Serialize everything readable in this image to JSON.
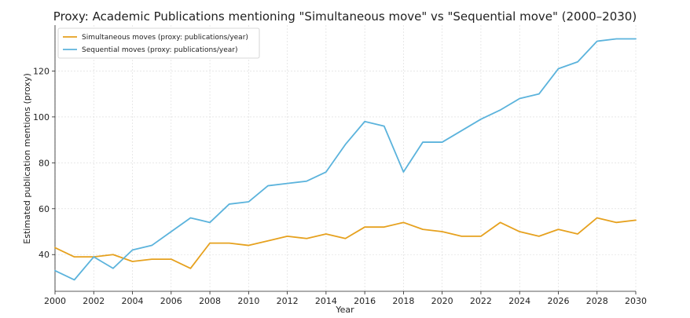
{
  "chart_data": {
    "type": "line",
    "title": "Proxy: Academic Publications mentioning \"Simultaneous move\" vs \"Sequential move\" (2000–2030)",
    "xlabel": "Year",
    "ylabel": "Estimated publication mentions (proxy)",
    "xlim": [
      2000,
      2030
    ],
    "ylim": [
      24,
      140
    ],
    "x_ticks": [
      2000,
      2002,
      2004,
      2006,
      2008,
      2010,
      2012,
      2014,
      2016,
      2018,
      2020,
      2022,
      2024,
      2026,
      2028,
      2030
    ],
    "y_ticks": [
      40,
      60,
      80,
      100,
      120
    ],
    "grid": true,
    "legend_position": "top-left",
    "x": [
      2000,
      2001,
      2002,
      2003,
      2004,
      2005,
      2006,
      2007,
      2008,
      2009,
      2010,
      2011,
      2012,
      2013,
      2014,
      2015,
      2016,
      2017,
      2018,
      2019,
      2020,
      2021,
      2022,
      2023,
      2024,
      2025,
      2026,
      2027,
      2028,
      2029,
      2030
    ],
    "series": [
      {
        "name": "Simultaneous moves (proxy: publications/year)",
        "color": "#E6A11E",
        "values": [
          43,
          39,
          39,
          40,
          37,
          38,
          38,
          34,
          45,
          45,
          44,
          46,
          48,
          47,
          49,
          47,
          52,
          52,
          54,
          51,
          50,
          48,
          48,
          54,
          50,
          48,
          51,
          49,
          56,
          54,
          55
        ]
      },
      {
        "name": "Sequential moves (proxy: publications/year)",
        "color": "#5BB3DC",
        "values": [
          33,
          29,
          39,
          34,
          42,
          44,
          50,
          56,
          54,
          62,
          63,
          70,
          71,
          72,
          76,
          88,
          98,
          96,
          76,
          89,
          89,
          94,
          99,
          103,
          108,
          110,
          121,
          124,
          133,
          134,
          134
        ]
      }
    ]
  }
}
